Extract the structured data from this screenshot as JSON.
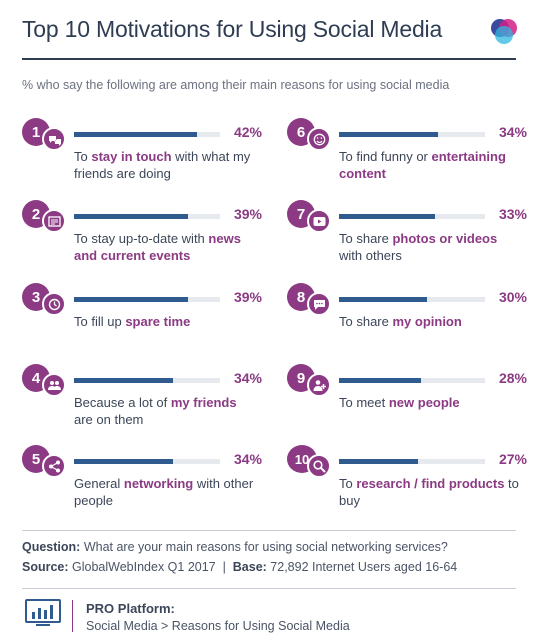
{
  "title": "Top 10 Motivations for Using Social Media",
  "subtitle": "% who say the following are among their main reasons for using social media",
  "colors": {
    "accent": "#8b3a83",
    "bar": "#2f5b8f",
    "track": "#e6e9ee",
    "text": "#2f3d53"
  },
  "chart_data": {
    "type": "bar",
    "ylim": [
      0,
      50
    ],
    "categories": [
      "1",
      "2",
      "3",
      "4",
      "5",
      "6",
      "7",
      "8",
      "9",
      "10"
    ],
    "values": [
      42,
      39,
      39,
      34,
      34,
      34,
      33,
      30,
      28,
      27
    ],
    "items": [
      {
        "rank": "1",
        "icon": "chat-bubbles-icon",
        "value": 42,
        "label": "42%",
        "desc": [
          {
            "t": "To "
          },
          {
            "t": "stay in touch",
            "h": true
          },
          {
            "t": " with what my friends are doing"
          }
        ]
      },
      {
        "rank": "2",
        "icon": "newspaper-icon",
        "value": 39,
        "label": "39%",
        "desc": [
          {
            "t": "To stay up-to-date with "
          },
          {
            "t": "news and current events",
            "h": true
          }
        ]
      },
      {
        "rank": "3",
        "icon": "clock-icon",
        "value": 39,
        "label": "39%",
        "desc": [
          {
            "t": "To fill up "
          },
          {
            "t": "spare time",
            "h": true
          }
        ]
      },
      {
        "rank": "4",
        "icon": "group-icon",
        "value": 34,
        "label": "34%",
        "desc": [
          {
            "t": "Because a lot of "
          },
          {
            "t": "my friends",
            "h": true
          },
          {
            "t": " are on them"
          }
        ]
      },
      {
        "rank": "5",
        "icon": "share-network-icon",
        "value": 34,
        "label": "34%",
        "desc": [
          {
            "t": "General "
          },
          {
            "t": "networking",
            "h": true
          },
          {
            "t": " with other people"
          }
        ]
      },
      {
        "rank": "6",
        "icon": "smiley-icon",
        "value": 34,
        "label": "34%",
        "desc": [
          {
            "t": "To find funny or "
          },
          {
            "t": "entertaining content",
            "h": true
          }
        ]
      },
      {
        "rank": "7",
        "icon": "play-video-icon",
        "value": 33,
        "label": "33%",
        "desc": [
          {
            "t": "To share "
          },
          {
            "t": "photos or videos",
            "h": true
          },
          {
            "t": " with others"
          }
        ]
      },
      {
        "rank": "8",
        "icon": "speech-bubble-icon",
        "value": 30,
        "label": "30%",
        "desc": [
          {
            "t": "To share "
          },
          {
            "t": "my opinion",
            "h": true
          }
        ]
      },
      {
        "rank": "9",
        "icon": "add-person-icon",
        "value": 28,
        "label": "28%",
        "desc": [
          {
            "t": "To meet "
          },
          {
            "t": "new people",
            "h": true
          }
        ]
      },
      {
        "rank": "10",
        "icon": "search-icon",
        "value": 27,
        "label": "27%",
        "desc": [
          {
            "t": "To "
          },
          {
            "t": "research / find products",
            "h": true
          },
          {
            "t": " to buy"
          }
        ]
      }
    ]
  },
  "footer": {
    "question_label": "Question:",
    "question_text": " What are your main reasons for using social networking services?",
    "source_label": "Source:",
    "source_text": " GlobalWebIndex Q1 2017  |  ",
    "base_label": "Base:",
    "base_text": " 72,892 Internet Users aged 16-64",
    "pro_title": "PRO Platform:",
    "pro_crumb": "Social Media > Reasons for Using Social Media",
    "pro_icon": "bar-chart-monitor-icon"
  }
}
